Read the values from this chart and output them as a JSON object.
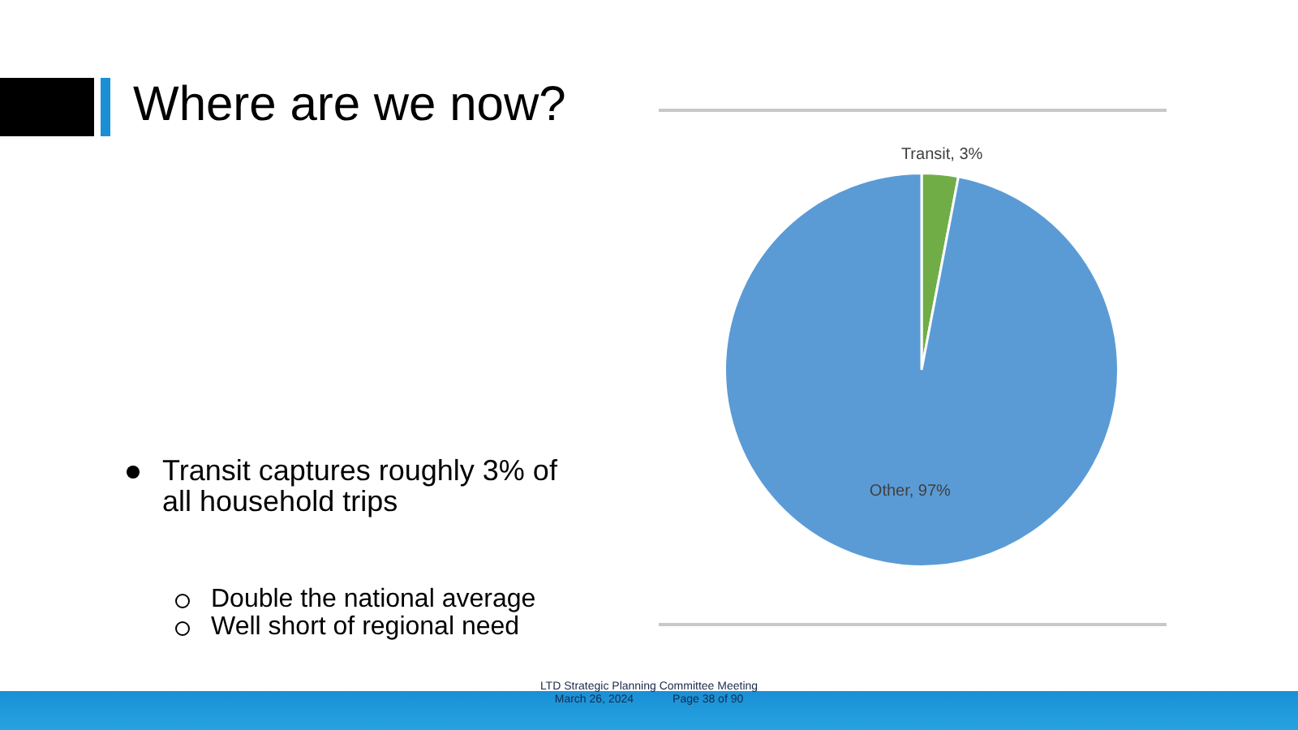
{
  "chart_data": {
    "type": "pie",
    "title": "Where are we now?",
    "categories": [
      "Transit",
      "Other"
    ],
    "values": [
      3,
      97
    ],
    "colors": [
      "#70ad47",
      "#5b9bd5"
    ],
    "value_labels": [
      "3%",
      "97%"
    ],
    "legend": false,
    "annotations": [
      "Transit captures roughly 3% of all household trips",
      "Double the national average",
      "Well short of regional need",
      "LTD Strategic Planning Committee Meeting",
      "March 26, 2024",
      "Page 38 of 90"
    ]
  }
}
